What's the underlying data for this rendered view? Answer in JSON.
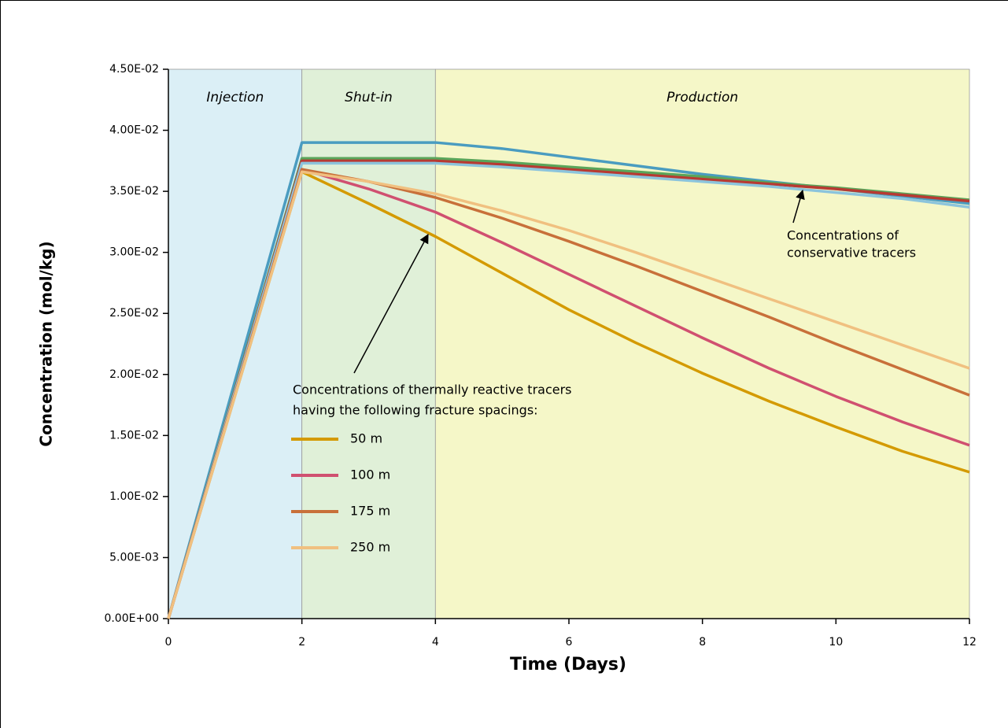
{
  "chart_data": {
    "type": "line",
    "xlabel": "Time (Days)",
    "ylabel": "Concentration   (mol/kg)",
    "x": [
      0,
      1,
      2,
      3,
      4,
      5,
      6,
      7,
      8,
      9,
      10,
      11,
      12
    ],
    "xlim": [
      0,
      12
    ],
    "xticks": [
      0,
      2,
      4,
      6,
      8,
      10,
      12
    ],
    "ylim": [
      0,
      0.045
    ],
    "yticks": [
      {
        "value": 0,
        "label": "0.00E+00"
      },
      {
        "value": 0.005,
        "label": "5.00E-03"
      },
      {
        "value": 0.01,
        "label": "1.00E-02"
      },
      {
        "value": 0.015,
        "label": "1.50E-02"
      },
      {
        "value": 0.02,
        "label": "2.00E-02"
      },
      {
        "value": 0.025,
        "label": "2.50E-02"
      },
      {
        "value": 0.03,
        "label": "3.00E-02"
      },
      {
        "value": 0.035,
        "label": "3.50E-02"
      },
      {
        "value": 0.04,
        "label": "4.00E-02"
      },
      {
        "value": 0.045,
        "label": "4.50E-02"
      }
    ],
    "regions": [
      {
        "label": "Injection",
        "from": 0,
        "to": 2,
        "color": "#dbeff6"
      },
      {
        "label": "Shut-in",
        "from": 2,
        "to": 4,
        "color": "#e0f0d8"
      },
      {
        "label": "Production",
        "from": 4,
        "to": 12,
        "color": "#f5f7c8"
      }
    ],
    "series": [
      {
        "color": "#4a9cc0",
        "values": [
          0,
          0.0195,
          0.039,
          0.039,
          0.039,
          0.0385,
          0.0378,
          0.0371,
          0.0364,
          0.0358,
          0.0352,
          0.0346,
          0.034
        ]
      },
      {
        "color": "#5aa55a",
        "values": [
          0,
          0.01885,
          0.0377,
          0.0377,
          0.0377,
          0.0374,
          0.037,
          0.0366,
          0.0362,
          0.0357,
          0.0353,
          0.0348,
          0.0343
        ]
      },
      {
        "color": "#b83a32",
        "values": [
          0,
          0.01875,
          0.0375,
          0.0375,
          0.0375,
          0.0372,
          0.0368,
          0.0364,
          0.036,
          0.0356,
          0.0352,
          0.0347,
          0.0342
        ]
      },
      {
        "color": "#8cc4dc",
        "values": [
          0,
          0.01865,
          0.0373,
          0.0373,
          0.0373,
          0.037,
          0.0366,
          0.0362,
          0.0358,
          0.0354,
          0.0349,
          0.0344,
          0.0337
        ]
      },
      {
        "name": "50 m",
        "color": "#d49a00",
        "values": [
          0,
          0.0183,
          0.0366,
          0.034,
          0.0313,
          0.0283,
          0.0253,
          0.0226,
          0.0201,
          0.0178,
          0.0157,
          0.0137,
          0.012
        ]
      },
      {
        "name": "100 m",
        "color": "#d05070",
        "values": [
          0,
          0.0184,
          0.0368,
          0.0352,
          0.0333,
          0.0308,
          0.0282,
          0.0256,
          0.023,
          0.0205,
          0.0182,
          0.0161,
          0.0142
        ]
      },
      {
        "name": "175 m",
        "color": "#c8703a",
        "values": [
          0,
          0.0184,
          0.0368,
          0.0358,
          0.0345,
          0.0328,
          0.0309,
          0.0289,
          0.0268,
          0.0247,
          0.0225,
          0.0204,
          0.0183
        ]
      },
      {
        "name": "250 m",
        "color": "#f0c080",
        "values": [
          0,
          0.0183,
          0.0366,
          0.0358,
          0.0348,
          0.0334,
          0.0318,
          0.03,
          0.0281,
          0.0262,
          0.0243,
          0.0224,
          0.0205
        ]
      }
    ],
    "annotations": [
      {
        "lines": [
          "Concentrations of",
          "conservative tracers"
        ]
      },
      {
        "lines": [
          "Concentrations of thermally reactive tracers",
          "having the following fracture spacings:"
        ]
      }
    ]
  }
}
